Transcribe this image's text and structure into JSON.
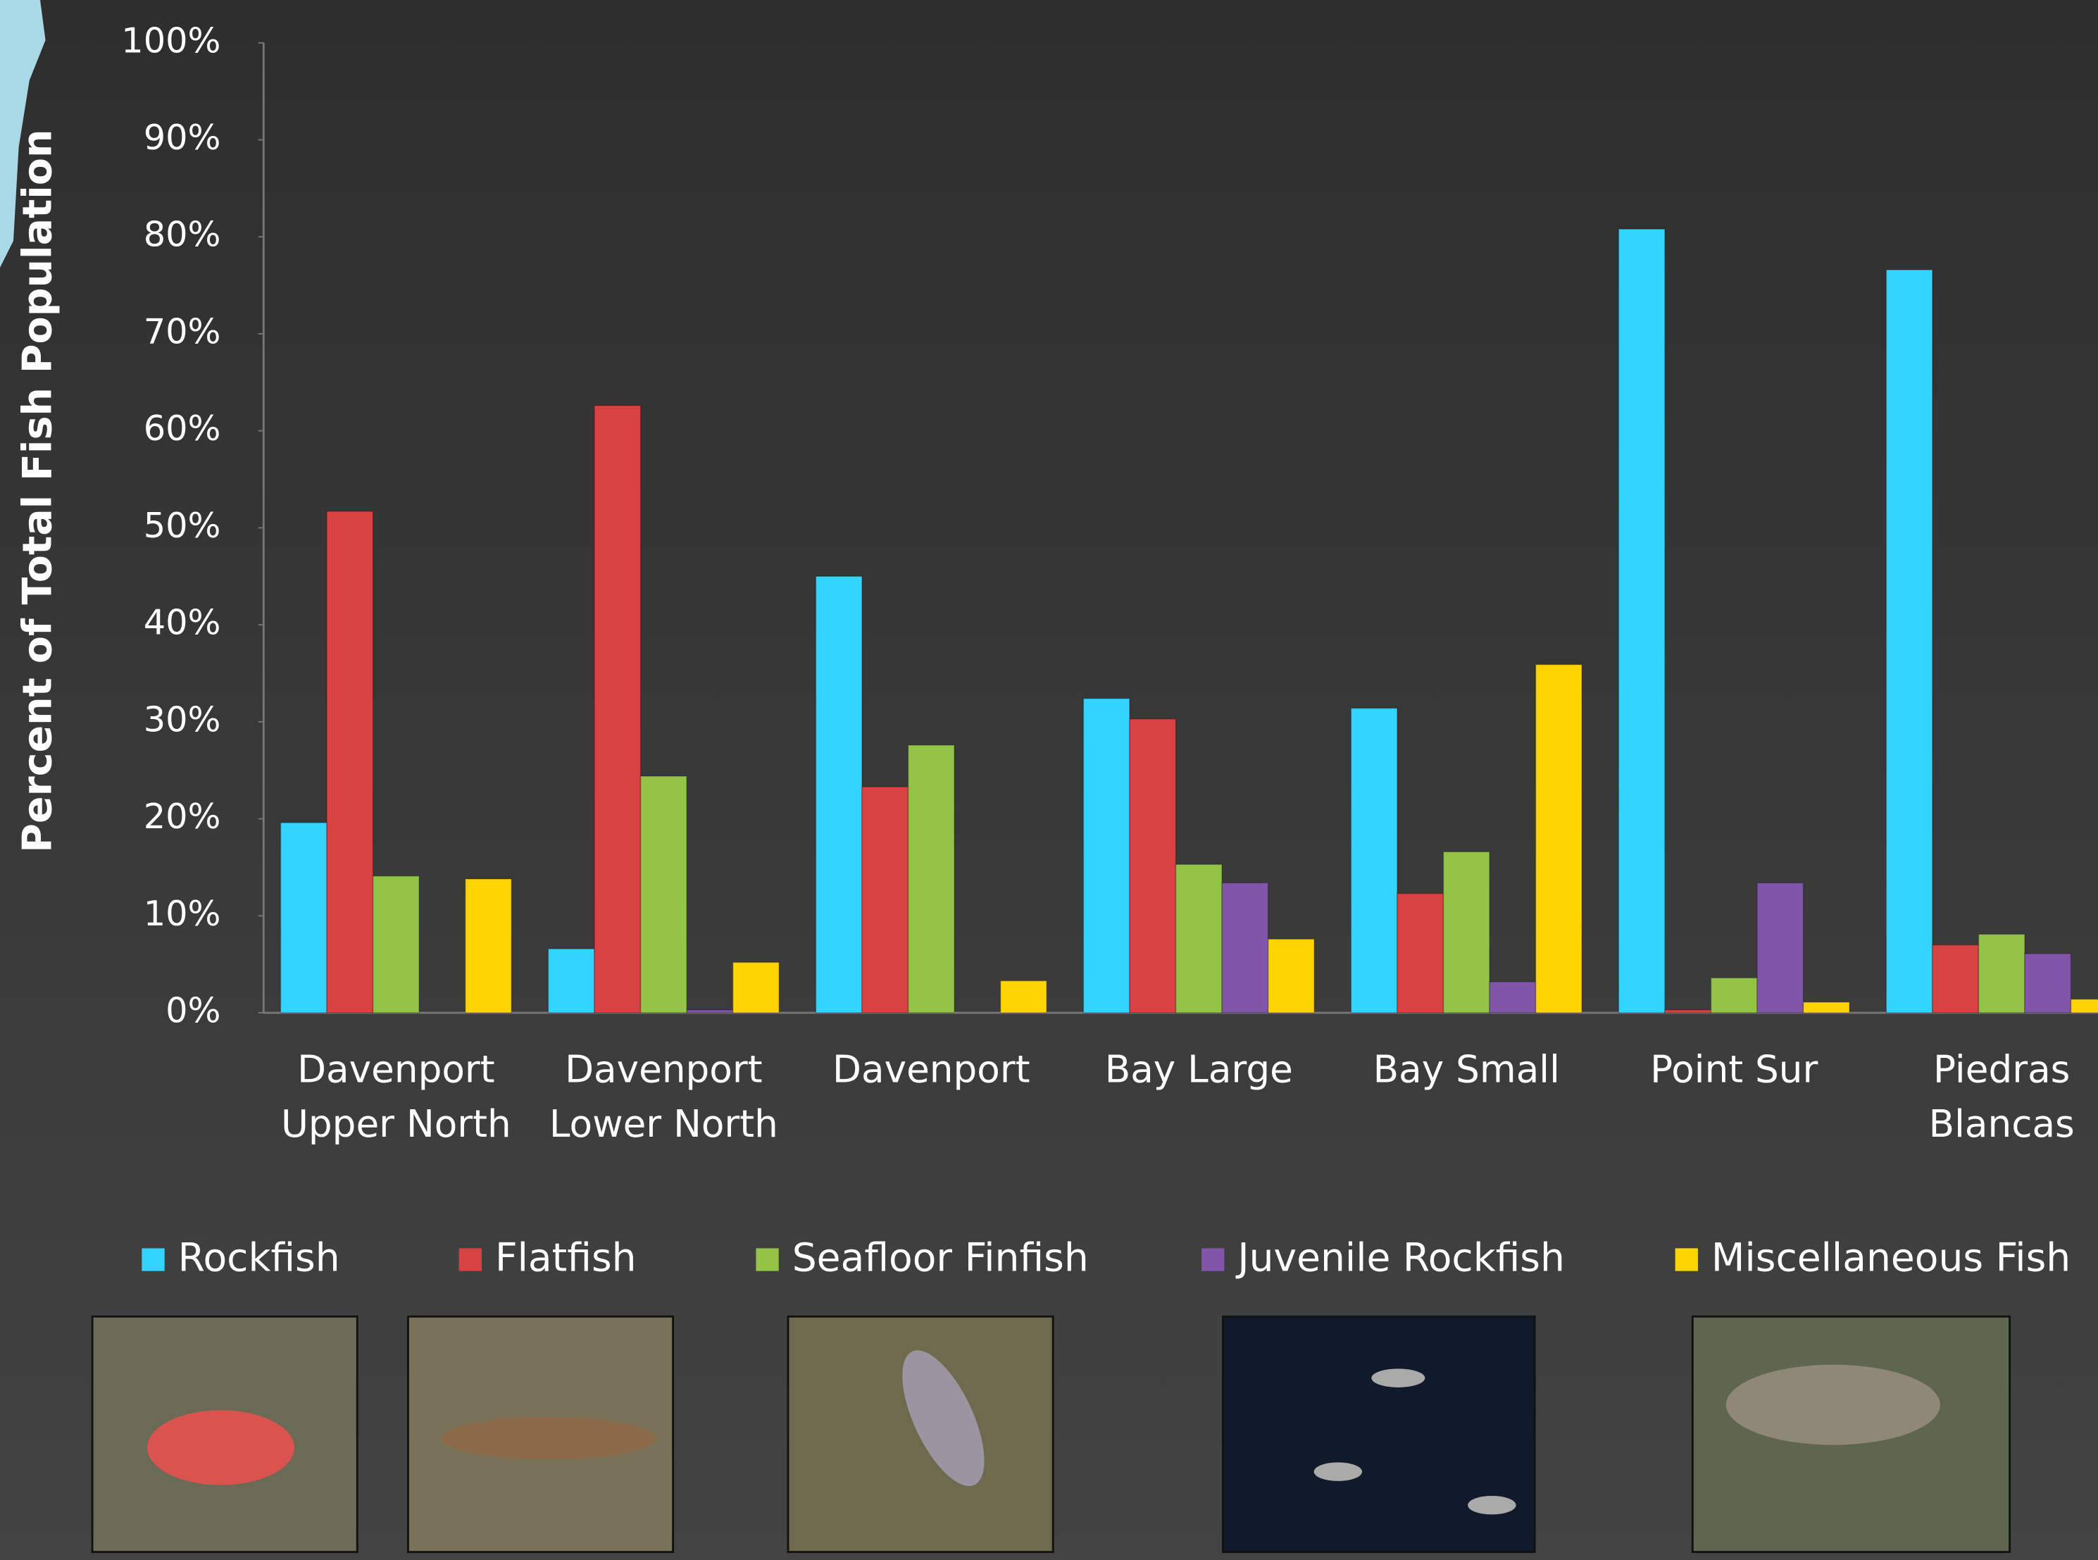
{
  "chart_data": {
    "type": "bar",
    "y_axis_label": "Percent of Total Fish Population",
    "categories": [
      [
        "Davenport",
        "Upper North"
      ],
      [
        "Davenport",
        "Lower North"
      ],
      [
        "Davenport"
      ],
      [
        "Bay Large"
      ],
      [
        "Bay Small"
      ],
      [
        "Point Sur"
      ],
      [
        "Piedras",
        "Blancas"
      ]
    ],
    "series": [
      {
        "name": "Rockfish",
        "color": "#33d4ff",
        "values": [
          19.6,
          6.6,
          45,
          32.4,
          31.4,
          80.8,
          76.6
        ]
      },
      {
        "name": "Flatfish",
        "color": "#d94242",
        "values": [
          51.7,
          62.6,
          23.3,
          30.3,
          12.3,
          0.3,
          7.0
        ]
      },
      {
        "name": "Seafloor Finfish",
        "color": "#93c447",
        "values": [
          14.1,
          24.4,
          27.6,
          15.3,
          16.6,
          3.6,
          8.1
        ]
      },
      {
        "name": "Juvenile Rockfish",
        "color": "#8055aa",
        "values": [
          0,
          0.3,
          0,
          13.4,
          3.2,
          13.4,
          6.1
        ]
      },
      {
        "name": "Miscellaneous Fish",
        "color": "#ffd400",
        "values": [
          13.8,
          5.2,
          3.3,
          7.6,
          35.9,
          1.1,
          1.4
        ]
      }
    ],
    "ylim": [
      0,
      100
    ],
    "yticks": [
      {
        "value": 0,
        "label": "0%"
      },
      {
        "value": 10,
        "label": "10%"
      },
      {
        "value": 20,
        "label": "20%"
      },
      {
        "value": 30,
        "label": "30%"
      },
      {
        "value": 40,
        "label": "40%"
      },
      {
        "value": 50,
        "label": "50%"
      },
      {
        "value": 60,
        "label": "60%"
      },
      {
        "value": 70,
        "label": "70%"
      },
      {
        "value": 80,
        "label": "80%"
      },
      {
        "value": 90,
        "label": "90%"
      },
      {
        "value": 100,
        "label": "100%"
      }
    ],
    "grid": false
  }
}
